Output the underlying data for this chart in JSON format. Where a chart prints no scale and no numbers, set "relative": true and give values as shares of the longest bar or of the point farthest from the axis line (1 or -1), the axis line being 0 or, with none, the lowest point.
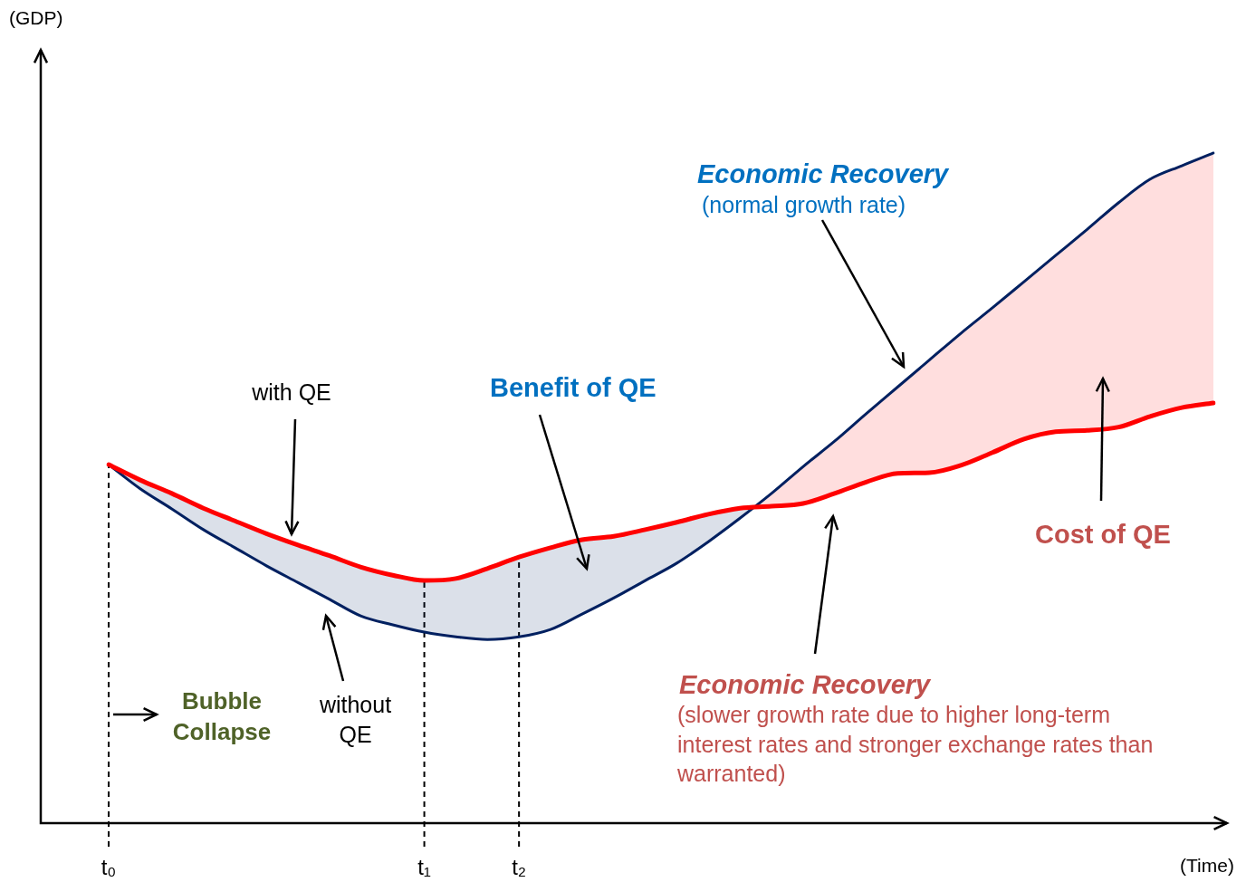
{
  "chart_data": {
    "type": "line",
    "relative": true,
    "xlabel": "(Time)",
    "categories": [
      "t₀",
      null,
      null,
      null,
      null,
      null,
      null,
      null,
      null,
      null,
      "t₁",
      null,
      null,
      "t₂",
      null,
      null,
      null,
      null,
      null,
      null,
      null,
      null,
      null,
      null,
      null,
      null,
      null,
      null,
      null,
      null,
      null,
      null,
      null,
      null,
      null,
      null
    ],
    "series": [
      {
        "color": "#ff0000",
        "values": [
          0.535,
          0.512,
          0.492,
          0.47,
          0.451,
          0.432,
          0.415,
          0.399,
          0.382,
          0.37,
          0.362,
          0.365,
          0.38,
          0.397,
          0.411,
          0.423,
          0.428,
          0.438,
          0.449,
          0.461,
          0.47,
          0.473,
          0.477,
          0.492,
          0.509,
          0.522,
          0.523,
          0.534,
          0.553,
          0.573,
          0.584,
          0.586,
          0.591,
          0.607,
          0.62,
          0.627
        ]
      },
      {
        "color": "#002060",
        "values": [
          0.535,
          0.499,
          0.469,
          0.438,
          0.411,
          0.384,
          0.359,
          0.334,
          0.309,
          0.296,
          0.285,
          0.278,
          0.274,
          0.278,
          0.289,
          0.312,
          0.336,
          0.362,
          0.388,
          0.42,
          0.455,
          0.492,
          0.532,
          0.57,
          0.611,
          0.651,
          0.691,
          0.731,
          0.769,
          0.808,
          0.847,
          0.886,
          0.926,
          0.961,
          0.981,
          1
        ],
        "lower": [
          0.535,
          0.512,
          0.492,
          0.47,
          0.451,
          0.432,
          0.415,
          0.399,
          0.382,
          0.37,
          0.362,
          0.365,
          0.38,
          0.397,
          0.411,
          0.423,
          0.428,
          0.438,
          0.449,
          0.461,
          0.47,
          0.473,
          0.477,
          0.492,
          0.509,
          0.522,
          0.523,
          0.534,
          0.553,
          0.573,
          0.584,
          0.586,
          0.591,
          0.607,
          0.62,
          0.627
        ],
        "upper": [
          0.535,
          0.499,
          0.469,
          0.438,
          0.411,
          0.384,
          0.359,
          0.334,
          0.309,
          0.296,
          0.285,
          0.278,
          0.274,
          0.278,
          0.289,
          0.312,
          0.336,
          0.362,
          0.388,
          0.42,
          0.455,
          0.492,
          0.532,
          0.57,
          0.611,
          0.651,
          0.691,
          0.731,
          0.769,
          0.808,
          0.847,
          0.886,
          0.926,
          0.961,
          0.981,
          1
        ]
      }
    ],
    "ref_lines": [
      {
        "axis": "x",
        "value": "t₀",
        "color": "#000000",
        "line_style": "dashed"
      },
      {
        "axis": "x",
        "value": "t₁",
        "color": "#000000",
        "line_style": "dashed"
      },
      {
        "axis": "x",
        "value": "t₂",
        "color": "#000000",
        "line_style": "dashed"
      }
    ],
    "annotations": [
      "(GDP)",
      "with QE",
      "without QE",
      "Economic Recovery",
      "(normal growth rate)",
      "Benefit of QE",
      "Cost of QE",
      "Bubble Collapse",
      "Economic Recovery",
      "(slower growth rate due to higher long-term interest rates and stronger exchange rates than warranted)"
    ],
    "grid": false,
    "legend": false,
    "marker": "none",
    "line_style": "solid"
  }
}
